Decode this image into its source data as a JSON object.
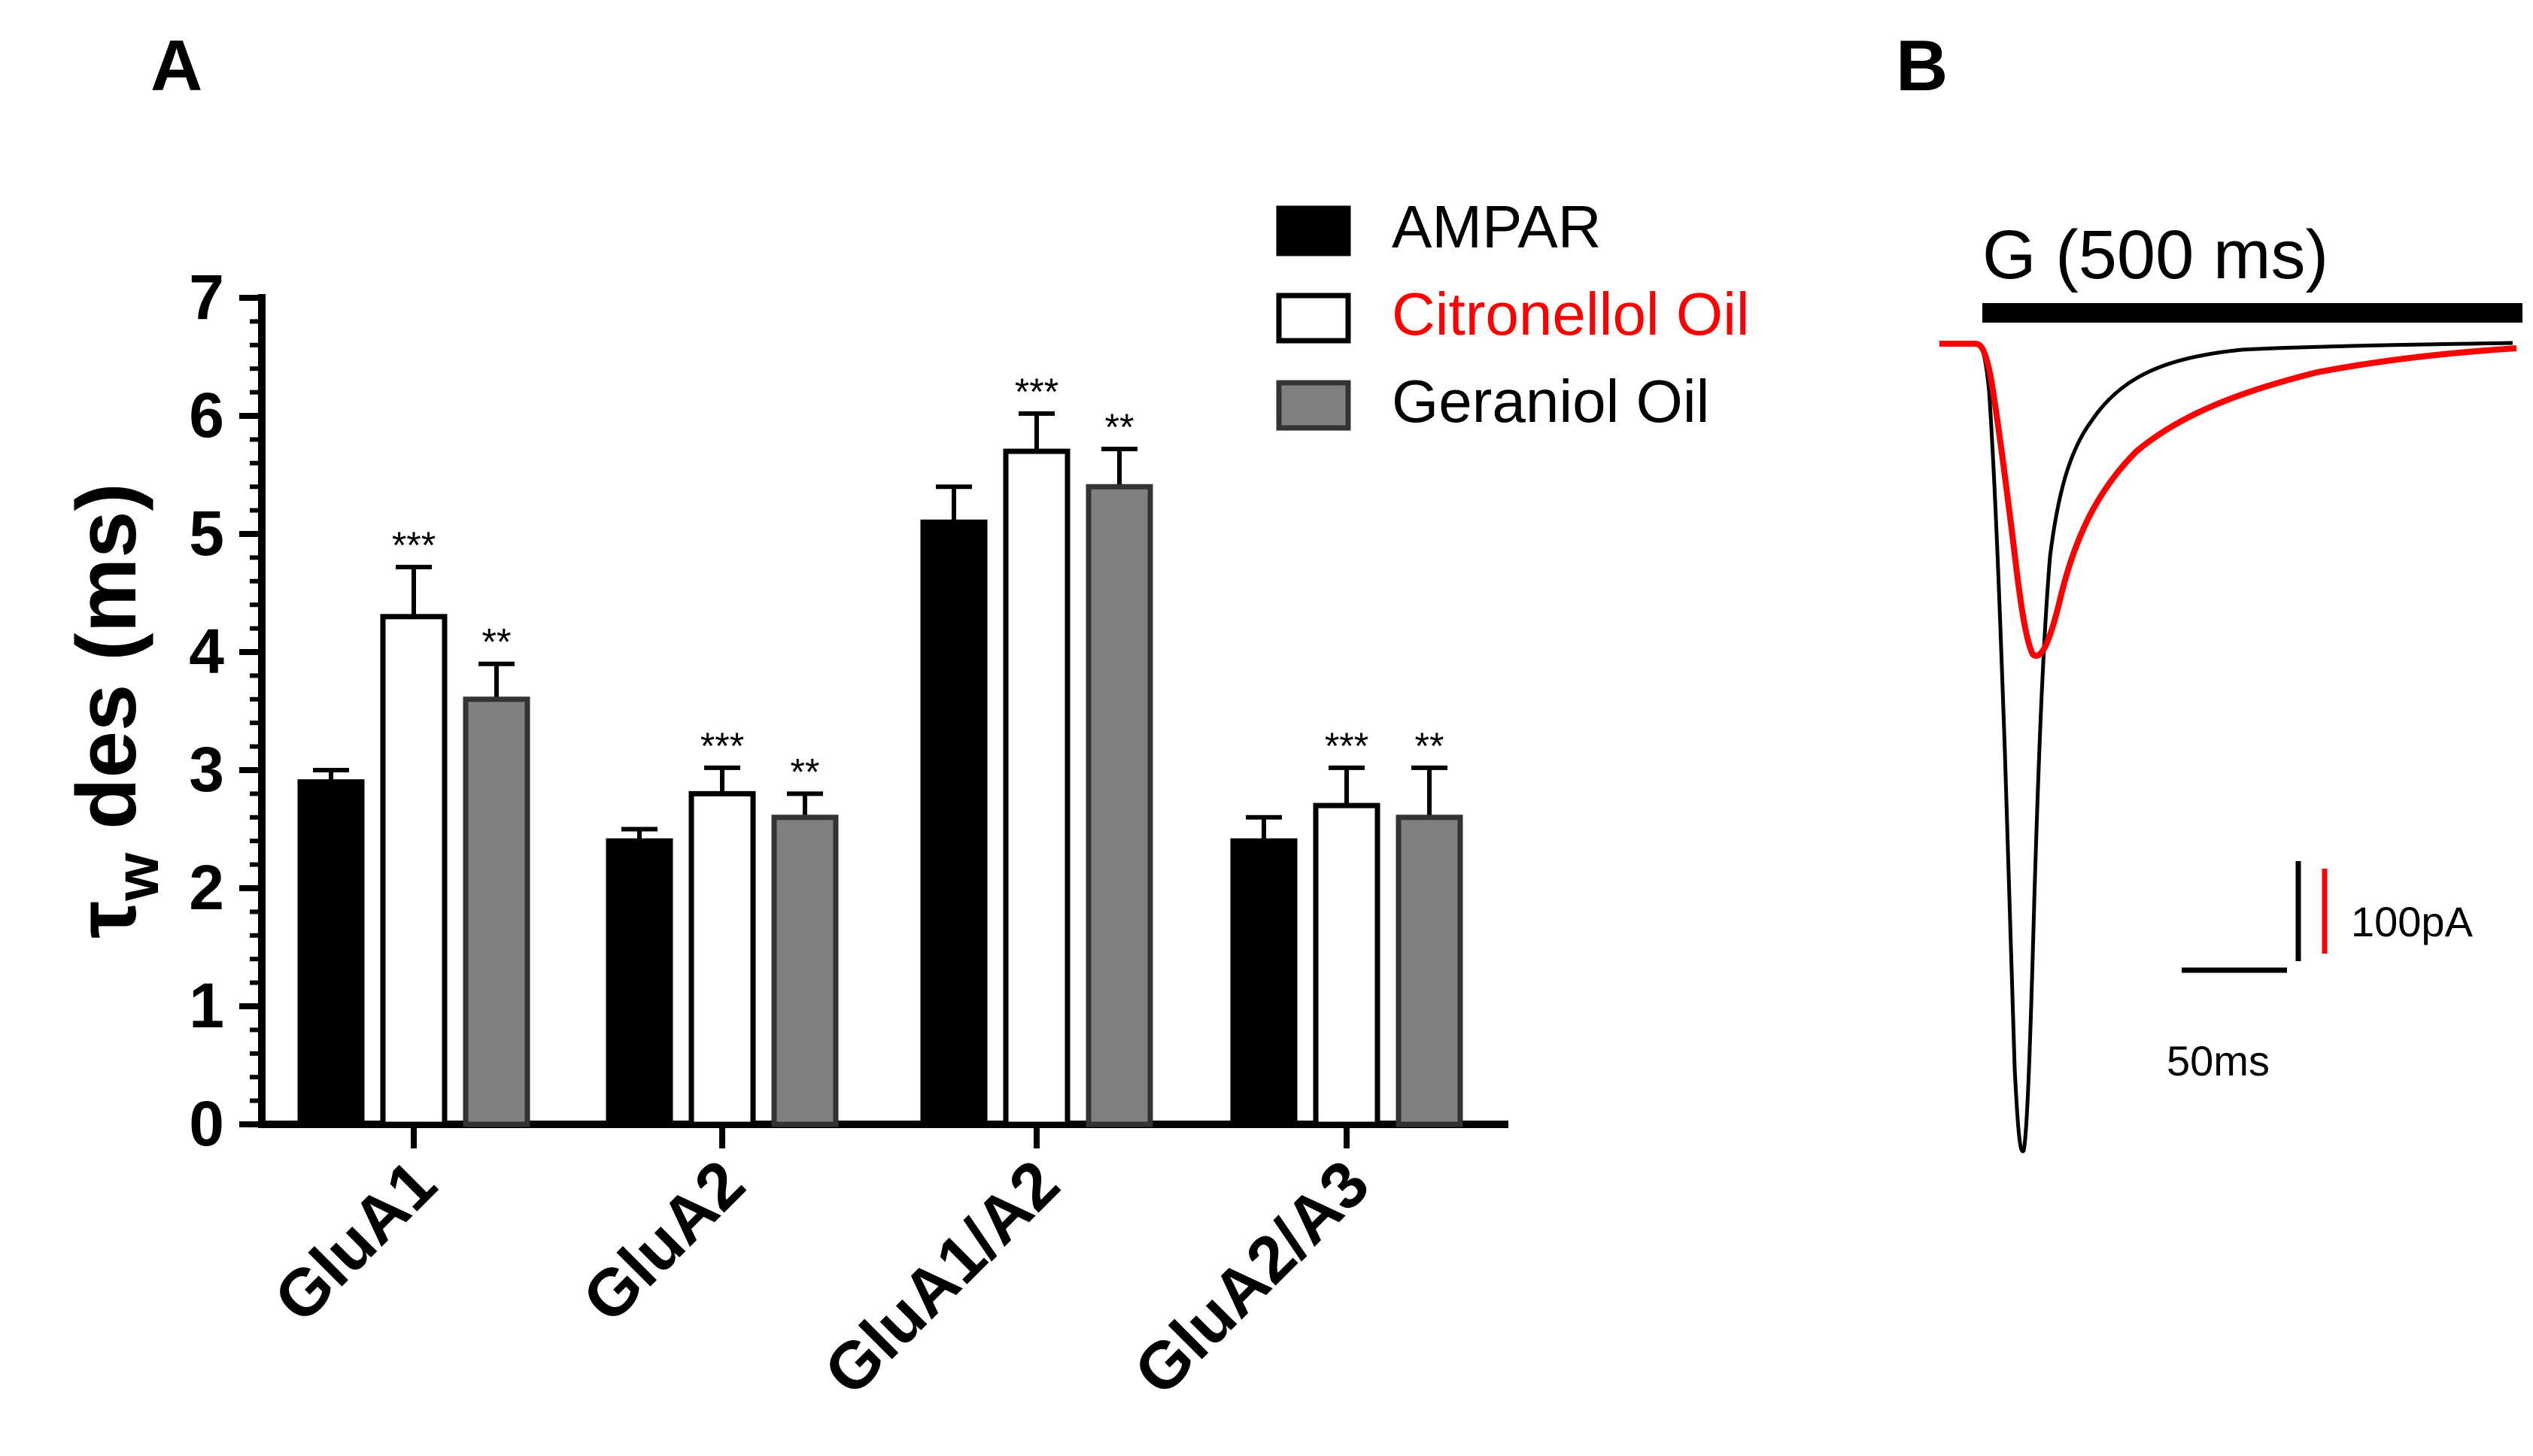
{
  "panel_a": {
    "label": "A"
  },
  "panel_b": {
    "label": "B",
    "stimulus_label": "G (500 ms)",
    "scale_bar_current": "100pA",
    "scale_bar_time": "50ms",
    "trace_colors": {
      "control": "#000000",
      "treated": "#ff0000"
    }
  },
  "chart_data": {
    "type": "bar",
    "title": "",
    "xlabel": "",
    "ylabel": "τw des (ms)",
    "ylabel_main": "τ",
    "ylabel_sub": "w",
    "ylabel_rest": " des (ms)",
    "ylim": [
      0,
      7
    ],
    "yticks": [
      0,
      1,
      2,
      3,
      4,
      5,
      6,
      7
    ],
    "grid": false,
    "legend_position": "top-right",
    "categories": [
      "GluA1",
      "GluA2",
      "GluA1/A2",
      "GluA2/A3"
    ],
    "series": [
      {
        "name": "AMPAR",
        "color": "#000000",
        "fill": "#000000",
        "values": [
          2.9,
          2.4,
          5.1,
          2.4
        ],
        "errors": [
          0.1,
          0.1,
          0.3,
          0.2
        ],
        "significance": [
          "",
          "",
          "",
          ""
        ]
      },
      {
        "name": "Citronellol Oil",
        "color": "#ff0000",
        "fill": "#ffffff",
        "values": [
          4.3,
          2.8,
          5.7,
          2.7
        ],
        "errors": [
          0.42,
          0.22,
          0.32,
          0.32
        ],
        "significance": [
          "***",
          "***",
          "***",
          "***"
        ]
      },
      {
        "name": "Geraniol Oil",
        "color": "#000000",
        "fill": "#808080",
        "values": [
          3.6,
          2.6,
          5.4,
          2.6
        ],
        "errors": [
          0.3,
          0.2,
          0.32,
          0.42
        ],
        "significance": [
          "**",
          "**",
          "**",
          "**"
        ]
      }
    ]
  }
}
